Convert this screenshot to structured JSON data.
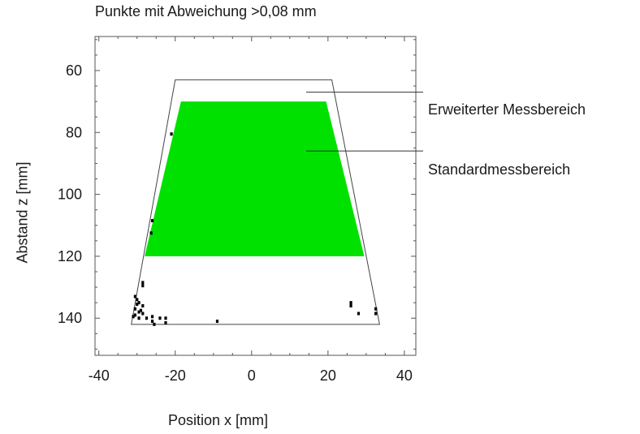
{
  "chart_data": {
    "type": "scatter",
    "title": "Punkte mit Abweichung >0,08 mm",
    "xlabel": "Position x [mm]",
    "ylabel": "Abstand z [mm]",
    "xlim": [
      -41,
      43
    ],
    "ylim": [
      152,
      49
    ],
    "y_inverted": true,
    "grid": false,
    "xticks": [
      -40,
      -20,
      0,
      20,
      40
    ],
    "yticks": [
      60,
      80,
      100,
      120,
      140
    ],
    "xtick_labels": [
      "-40",
      "-20",
      "0",
      "20",
      "40"
    ],
    "ytick_labels": [
      "60",
      "80",
      "100",
      "120",
      "140"
    ],
    "extended_range": {
      "polygon": [
        [
          -20,
          63
        ],
        [
          21,
          63
        ],
        [
          33.5,
          142
        ],
        [
          -31.5,
          142
        ]
      ],
      "label": "Erweiterter Messbereich"
    },
    "standard_range": {
      "polygon": [
        [
          -18.5,
          70
        ],
        [
          19.5,
          70
        ],
        [
          29.5,
          120
        ],
        [
          -28,
          120
        ]
      ],
      "label": "Standardmessbereich",
      "color": "#00e100"
    },
    "points": [
      {
        "x": -21,
        "y": 80.5
      },
      {
        "x": -26,
        "y": 108.5
      },
      {
        "x": -26.3,
        "y": 112.5
      },
      {
        "x": -28.5,
        "y": 128.5
      },
      {
        "x": -28.5,
        "y": 129.5
      },
      {
        "x": -30.5,
        "y": 133
      },
      {
        "x": -30,
        "y": 134
      },
      {
        "x": -29.5,
        "y": 135
      },
      {
        "x": -28.5,
        "y": 136
      },
      {
        "x": -30.5,
        "y": 137
      },
      {
        "x": -29,
        "y": 137.5
      },
      {
        "x": -28.5,
        "y": 138.5
      },
      {
        "x": -30.5,
        "y": 139
      },
      {
        "x": -31,
        "y": 139.5
      },
      {
        "x": -29.5,
        "y": 140
      },
      {
        "x": -27.5,
        "y": 140
      },
      {
        "x": -26,
        "y": 139.5
      },
      {
        "x": -26,
        "y": 141
      },
      {
        "x": -25.5,
        "y": 142
      },
      {
        "x": -24,
        "y": 140
      },
      {
        "x": -22.5,
        "y": 140
      },
      {
        "x": -22.5,
        "y": 141.5
      },
      {
        "x": -30,
        "y": 135.5
      },
      {
        "x": -29.5,
        "y": 138
      },
      {
        "x": -9,
        "y": 141
      },
      {
        "x": 26,
        "y": 135
      },
      {
        "x": 26,
        "y": 136
      },
      {
        "x": 28,
        "y": 138.5
      },
      {
        "x": 32.5,
        "y": 137
      },
      {
        "x": 32.5,
        "y": 138.5
      }
    ],
    "point_color": "#000000"
  }
}
